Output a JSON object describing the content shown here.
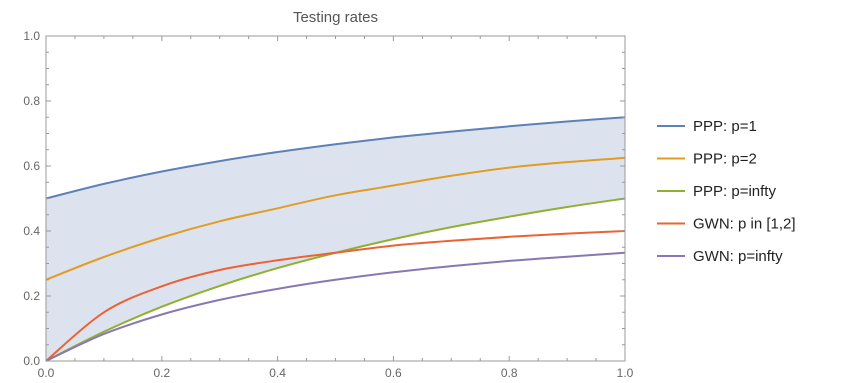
{
  "chart_data": {
    "type": "line",
    "title": "Testing rates",
    "xlabel": "",
    "ylabel": "",
    "xlim": [
      0,
      1
    ],
    "ylim": [
      0,
      1
    ],
    "x_ticks": [
      "0.0",
      "0.2",
      "0.4",
      "0.6",
      "0.8",
      "1.0"
    ],
    "y_ticks": [
      "0.0",
      "0.2",
      "0.4",
      "0.6",
      "0.8",
      "1.0"
    ],
    "grid": false,
    "legend_position": "right",
    "shaded_region": {
      "between": [
        "PPP: p=1",
        "PPP: p=infty"
      ],
      "color": "#dde3ee"
    },
    "x": [
      0,
      0.1,
      0.2,
      0.3,
      0.4,
      0.5,
      0.6,
      0.7,
      0.8,
      0.9,
      1.0
    ],
    "series": [
      {
        "name": "PPP: p=1",
        "color": "#5e81b5",
        "values": [
          0.5,
          0.545,
          0.583,
          0.615,
          0.643,
          0.667,
          0.688,
          0.706,
          0.722,
          0.737,
          0.75
        ]
      },
      {
        "name": "PPP: p=2",
        "color": "#e19c24",
        "values": [
          0.25,
          0.32,
          0.38,
          0.43,
          0.47,
          0.51,
          0.54,
          0.57,
          0.595,
          0.612,
          0.625
        ]
      },
      {
        "name": "PPP: p=infty",
        "color": "#8fb032",
        "values": [
          0.0,
          0.09,
          0.167,
          0.231,
          0.286,
          0.333,
          0.375,
          0.412,
          0.444,
          0.474,
          0.5
        ]
      },
      {
        "name": "GWN: p in [1,2]",
        "color": "#eb6235",
        "values": [
          0.0,
          0.15,
          0.23,
          0.28,
          0.31,
          0.333,
          0.355,
          0.37,
          0.382,
          0.392,
          0.4
        ]
      },
      {
        "name": "GWN: p=infty",
        "color": "#8778b3",
        "values": [
          0.0,
          0.083,
          0.143,
          0.188,
          0.222,
          0.25,
          0.273,
          0.292,
          0.308,
          0.321,
          0.333
        ]
      }
    ]
  }
}
